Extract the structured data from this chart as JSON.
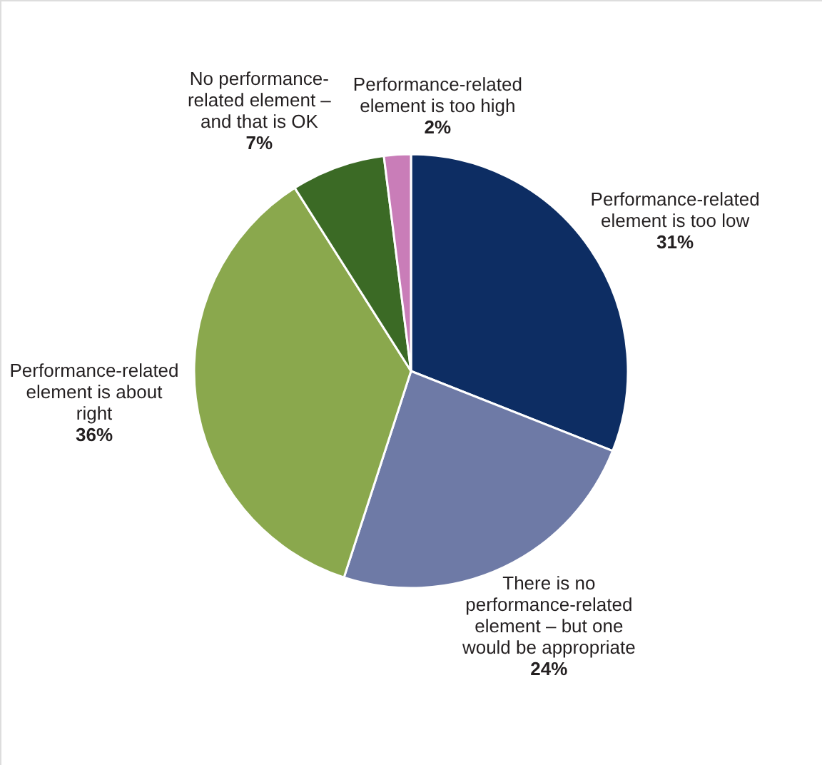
{
  "chart_data": {
    "type": "pie",
    "categories": [
      "Performance-related element is too low",
      "There is no performance-related element – but one would be appropriate",
      "Performance-related element is about right",
      "No performance-related element – and that is OK",
      "Performance-related element is too high"
    ],
    "values": [
      31,
      24,
      36,
      7,
      2
    ],
    "value_labels": [
      "31%",
      "24%",
      "36%",
      "7%",
      "2%"
    ],
    "colors": [
      "#0d2d63",
      "#6e7aa6",
      "#8aa84d",
      "#3b6a25",
      "#c97db8"
    ]
  }
}
